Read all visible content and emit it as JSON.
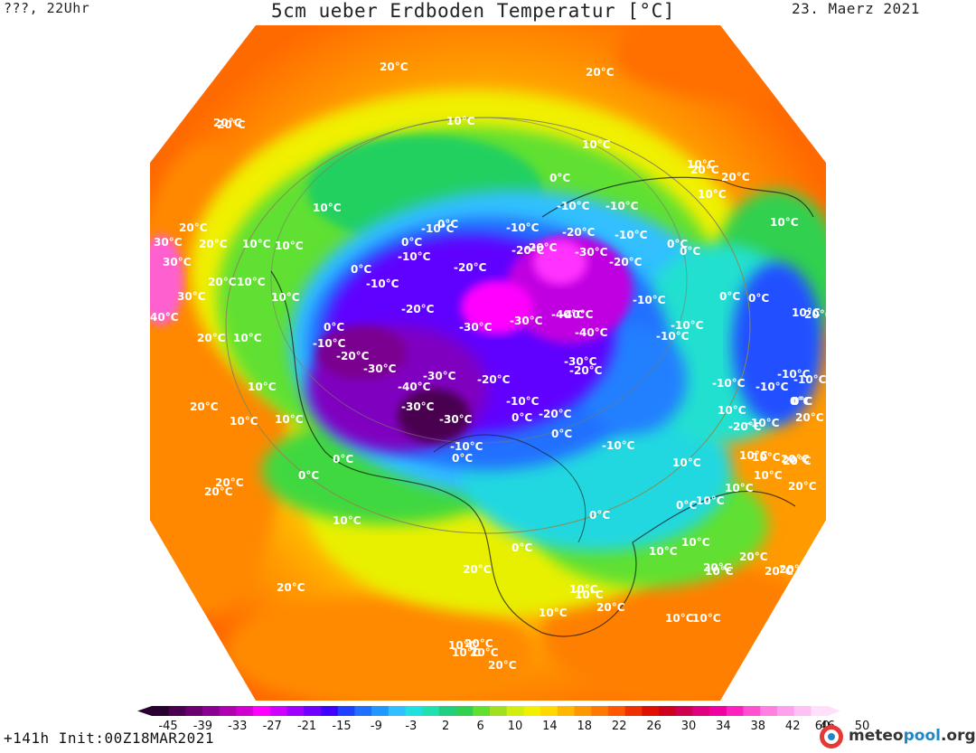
{
  "header": {
    "left": "???, 22Uhr",
    "title": "5cm ueber Erdboden Temperatur [°C]",
    "date": "23. Maerz 2021"
  },
  "footer": {
    "run": "+141h Init:00Z18MAR2021"
  },
  "brand": {
    "name_a": "meteo",
    "name_b": "pool",
    "name_c": ".org"
  },
  "colorbar": {
    "tick_labels": [
      "-45",
      "-39",
      "-33",
      "-27",
      "-21",
      "-15",
      "-9",
      "-3",
      "2",
      "6",
      "10",
      "14",
      "18",
      "22",
      "26",
      "30",
      "34",
      "38",
      "42",
      "46",
      "50",
      "60"
    ],
    "colors": [
      "#2a0030",
      "#4a0050",
      "#6a0070",
      "#8a0090",
      "#b000b0",
      "#d000d0",
      "#ff00ff",
      "#d000ff",
      "#a000ff",
      "#7000ff",
      "#4000ff",
      "#2040ff",
      "#2070ff",
      "#2098ff",
      "#30c0ff",
      "#20e0e0",
      "#20e0b0",
      "#20d080",
      "#30d050",
      "#60e030",
      "#a0e020",
      "#d0ee10",
      "#f0f000",
      "#ffd800",
      "#ffb800",
      "#ff9800",
      "#ff7800",
      "#ff5800",
      "#f03000",
      "#e01000",
      "#d00020",
      "#d00050",
      "#e00080",
      "#f000a0",
      "#ff20c0",
      "#ff50d0",
      "#ff80e0",
      "#ffa0ee",
      "#ffc0f5",
      "#ffe0fa"
    ]
  },
  "map_labels": [
    {
      "t": "20°C"
    },
    {
      "t": "20°C"
    },
    {
      "t": "20°C"
    },
    {
      "t": "10°C"
    },
    {
      "t": "10°C"
    },
    {
      "t": "10°C"
    },
    {
      "t": "20°C"
    },
    {
      "t": "10°C"
    },
    {
      "t": "10°C"
    },
    {
      "t": "20°C"
    },
    {
      "t": "30°C"
    },
    {
      "t": "20°C"
    },
    {
      "t": "20°C"
    },
    {
      "t": "10°C"
    },
    {
      "t": "10°C"
    },
    {
      "t": "30°C"
    },
    {
      "t": "20°C"
    },
    {
      "t": "10°C"
    },
    {
      "t": "30°C"
    },
    {
      "t": "10°C"
    },
    {
      "t": "40°C"
    },
    {
      "t": "20°C"
    },
    {
      "t": "10°C"
    },
    {
      "t": "10°C"
    },
    {
      "t": "20°C"
    },
    {
      "t": "10°C"
    },
    {
      "t": "10°C"
    },
    {
      "t": "20°C"
    },
    {
      "t": "20°C"
    },
    {
      "t": "10°C"
    },
    {
      "t": "20°C"
    },
    {
      "t": "0°C"
    },
    {
      "t": "-10°C"
    },
    {
      "t": "0°C"
    },
    {
      "t": "-10°C"
    },
    {
      "t": "0°C"
    },
    {
      "t": "-10°C"
    },
    {
      "t": "-20°C"
    },
    {
      "t": "-20°C"
    },
    {
      "t": "-20°C"
    },
    {
      "t": "-30°C"
    },
    {
      "t": "-10°C"
    },
    {
      "t": "-20°C"
    },
    {
      "t": "-30°C"
    },
    {
      "t": "-30°C"
    },
    {
      "t": "-40°C"
    },
    {
      "t": "-30°C"
    },
    {
      "t": "-20°C"
    },
    {
      "t": "-30°C"
    },
    {
      "t": "-30°C"
    },
    {
      "t": "-20°C"
    },
    {
      "t": "-10°C"
    },
    {
      "t": "-40°C"
    },
    {
      "t": "0°C"
    },
    {
      "t": "-10°C"
    },
    {
      "t": "-10°C"
    },
    {
      "t": "0°C"
    },
    {
      "t": "-10°C"
    },
    {
      "t": "-20°C"
    },
    {
      "t": "-10°C"
    },
    {
      "t": "-20°C"
    },
    {
      "t": "-30°C"
    },
    {
      "t": "-20°C"
    },
    {
      "t": "-40°C"
    },
    {
      "t": "-40°C"
    },
    {
      "t": "-30°C"
    },
    {
      "t": "-20°C"
    },
    {
      "t": "-10°C"
    },
    {
      "t": "-10°C"
    },
    {
      "t": "0°C"
    },
    {
      "t": "0°C"
    },
    {
      "t": "0°C"
    },
    {
      "t": "-10°C"
    },
    {
      "t": "0°C"
    },
    {
      "t": "0°C"
    },
    {
      "t": "0°C"
    },
    {
      "t": "-10°C"
    },
    {
      "t": "-10°C"
    },
    {
      "t": "-10°C"
    },
    {
      "t": "-10°C"
    },
    {
      "t": "0°C"
    },
    {
      "t": "10°C"
    },
    {
      "t": "0°C"
    },
    {
      "t": "0°C"
    },
    {
      "t": "10°C"
    },
    {
      "t": "0°C"
    },
    {
      "t": "0°C"
    },
    {
      "t": "10°C"
    },
    {
      "t": "0°C"
    },
    {
      "t": "10°C"
    },
    {
      "t": "10°C"
    },
    {
      "t": "0°C"
    },
    {
      "t": "10°C"
    },
    {
      "t": "20°C"
    },
    {
      "t": "20°C"
    },
    {
      "t": "-10°C"
    },
    {
      "t": "10°C"
    },
    {
      "t": "20°C"
    },
    {
      "t": "-10°C"
    },
    {
      "t": "-10°C"
    },
    {
      "t": "-20°C"
    },
    {
      "t": "0°C"
    },
    {
      "t": "20°C"
    },
    {
      "t": "10°C"
    },
    {
      "t": "20°C"
    },
    {
      "t": "10°C"
    },
    {
      "t": "10°C"
    },
    {
      "t": "20°C"
    },
    {
      "t": "10°C"
    },
    {
      "t": "10°C"
    },
    {
      "t": "20°C"
    },
    {
      "t": "20°C"
    },
    {
      "t": "20°C"
    },
    {
      "t": "10°C"
    },
    {
      "t": "10°C"
    },
    {
      "t": "20°C"
    },
    {
      "t": "20°C"
    },
    {
      "t": "10°C"
    },
    {
      "t": "10°C"
    },
    {
      "t": "20°C"
    },
    {
      "t": "20°C"
    },
    {
      "t": "10°C"
    },
    {
      "t": "10°C"
    },
    {
      "t": "20°C"
    },
    {
      "t": "10°C"
    },
    {
      "t": "20°C"
    }
  ]
}
